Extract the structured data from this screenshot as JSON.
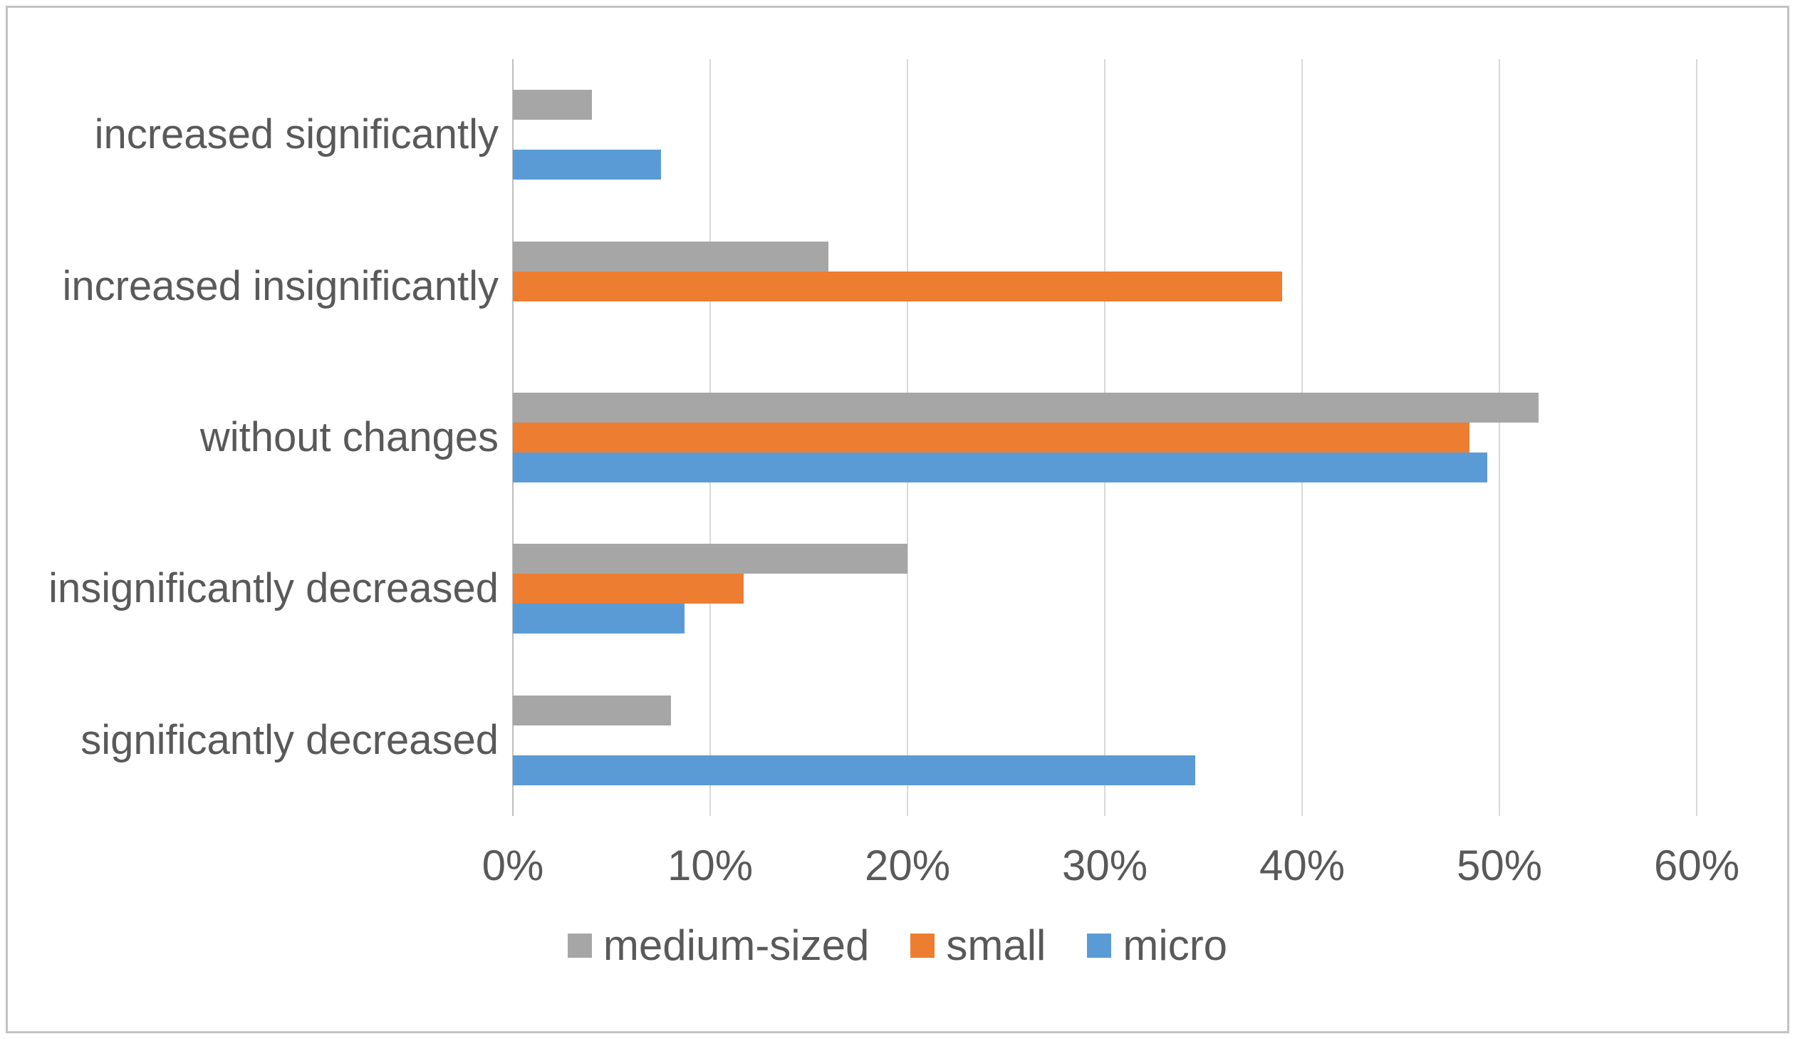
{
  "colors": {
    "medium_sized": "#a6a6a6",
    "small": "#ed7d31",
    "micro": "#5b9bd5",
    "gridline": "#d9d9d9",
    "axis_line": "#bfbfbf",
    "text": "#595959",
    "frame_border": "#c3c3c3"
  },
  "chart_data": {
    "type": "bar",
    "orientation": "horizontal",
    "title": "",
    "xlabel": "",
    "ylabel": "",
    "categories": [
      "increased significantly",
      "increased insignificantly",
      "without changes",
      "insignificantly decreased",
      "significantly decreased"
    ],
    "series": [
      {
        "name": "medium-sized",
        "color": "#a6a6a6",
        "values": [
          4,
          16,
          52,
          20,
          8
        ]
      },
      {
        "name": "small",
        "color": "#ed7d31",
        "values": [
          0,
          39,
          48.5,
          11.7,
          0
        ]
      },
      {
        "name": "micro",
        "color": "#5b9bd5",
        "values": [
          7.5,
          0,
          49.4,
          8.7,
          34.6
        ]
      }
    ],
    "x_axis": {
      "tick_labels": [
        "0%",
        "10%",
        "20%",
        "30%",
        "40%",
        "50%",
        "60%"
      ],
      "tick_values": [
        0,
        10,
        20,
        30,
        40,
        50,
        60
      ],
      "min": 0,
      "max": 60,
      "grid": true
    },
    "legend": {
      "position": "bottom",
      "items": [
        "medium-sized",
        "small",
        "micro"
      ]
    }
  }
}
